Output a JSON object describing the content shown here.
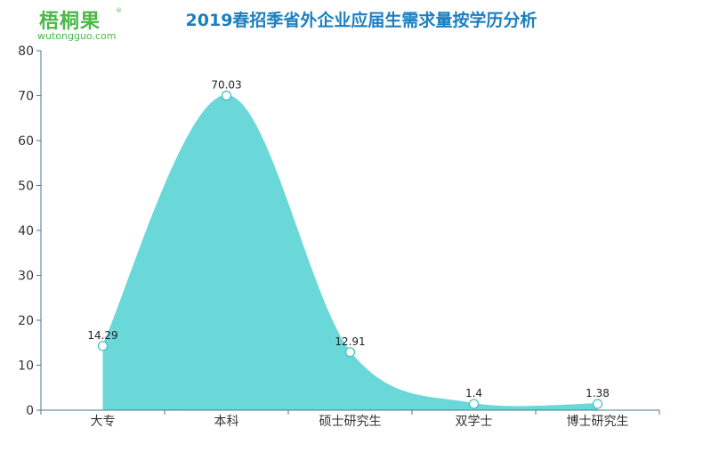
{
  "logo": {
    "main": "梧桐果",
    "reg": "®",
    "sub": "wutongguo.com",
    "color": "#4cb848"
  },
  "chart_data": {
    "type": "area",
    "title": "2019春招季省外企业应届生需求量按学历分析",
    "categories": [
      "大专",
      "本科",
      "硕士研究生",
      "双学士",
      "博士研究生"
    ],
    "values": [
      14.29,
      70.03,
      12.91,
      1.4,
      1.38
    ],
    "data_labels": [
      "14.29",
      "70.03",
      "12.91",
      "1.4",
      "1.38"
    ],
    "ylim": [
      0,
      80
    ],
    "yticks": [
      0,
      10,
      20,
      30,
      40,
      50,
      60,
      70,
      80
    ],
    "xlabel": "",
    "ylabel": "",
    "grid": false,
    "smooth": true,
    "fill_color": "#6ad8d8",
    "axis_color": "#4a7a8c",
    "title_color": "#1a7fc1"
  }
}
